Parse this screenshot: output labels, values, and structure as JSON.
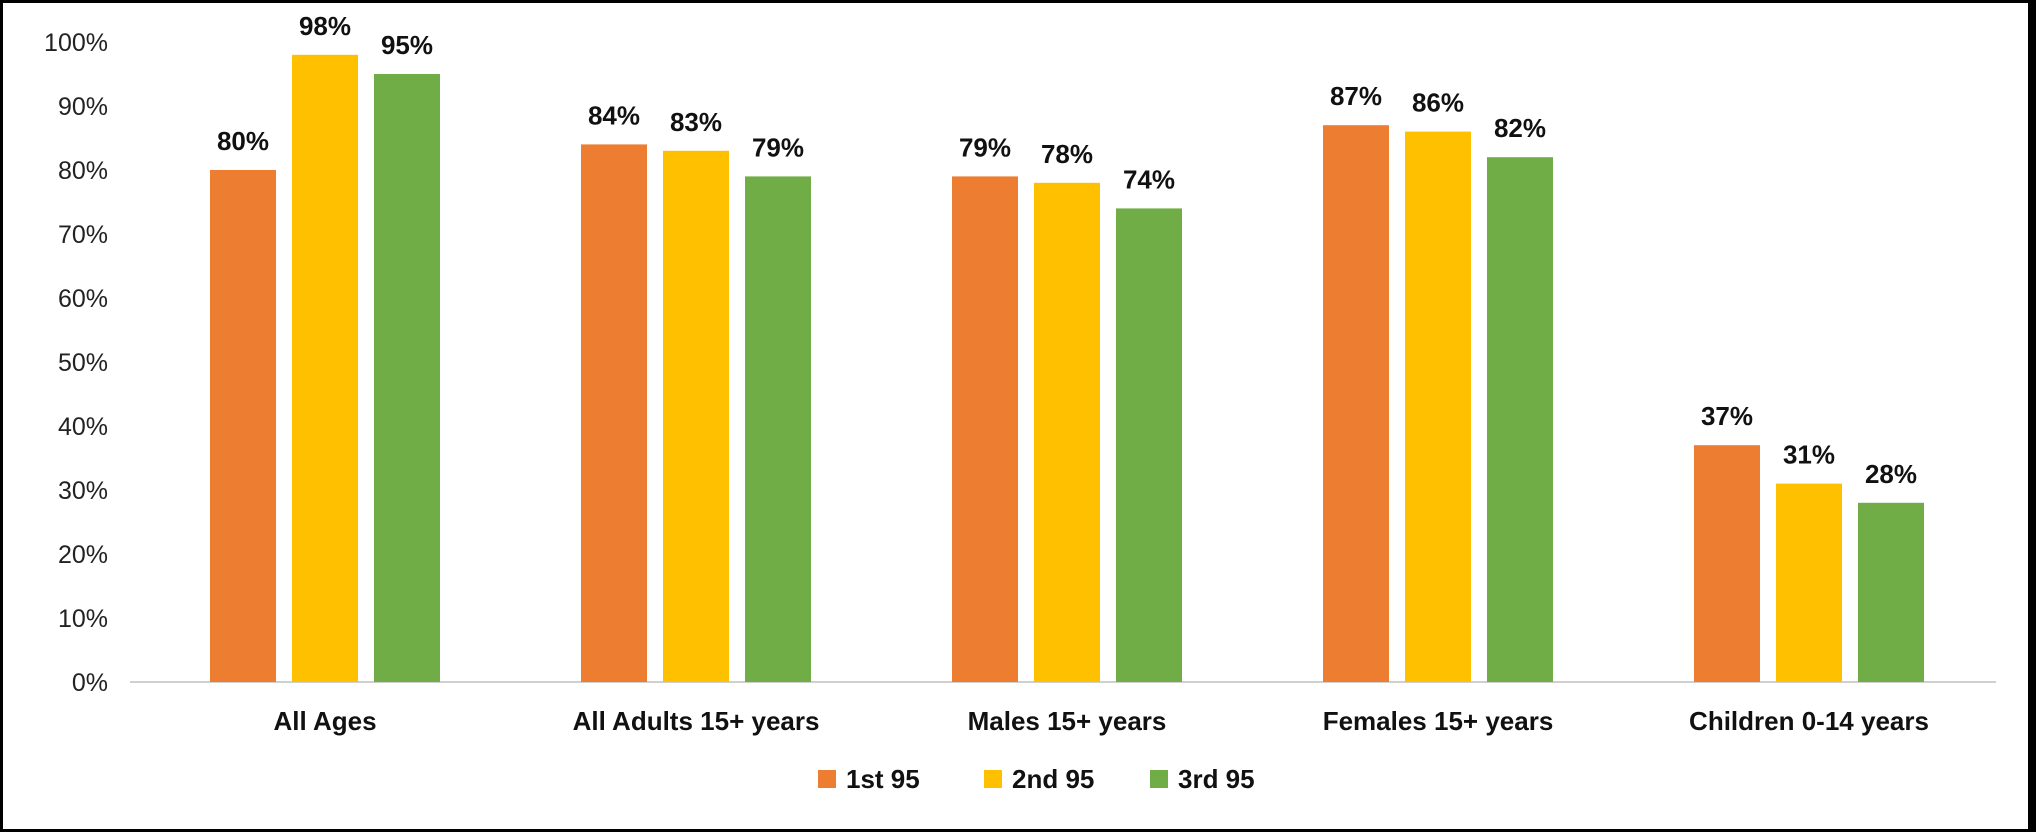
{
  "chart_data": {
    "type": "bar",
    "categories": [
      "All Ages",
      "All Adults 15+ years",
      "Males 15+ years",
      "Females 15+ years",
      "Children 0-14 years"
    ],
    "series": [
      {
        "name": "1st 95",
        "color": "#ED7D31",
        "values": [
          80,
          84,
          79,
          87,
          37
        ]
      },
      {
        "name": "2nd 95",
        "color": "#FFC000",
        "values": [
          98,
          83,
          78,
          86,
          31
        ]
      },
      {
        "name": "3rd 95",
        "color": "#70AD47",
        "values": [
          95,
          79,
          74,
          82,
          28
        ]
      }
    ],
    "value_suffix": "%",
    "ylim": [
      0,
      100
    ],
    "ytick_step": 10,
    "grid": false,
    "legend": "bottom-center"
  }
}
